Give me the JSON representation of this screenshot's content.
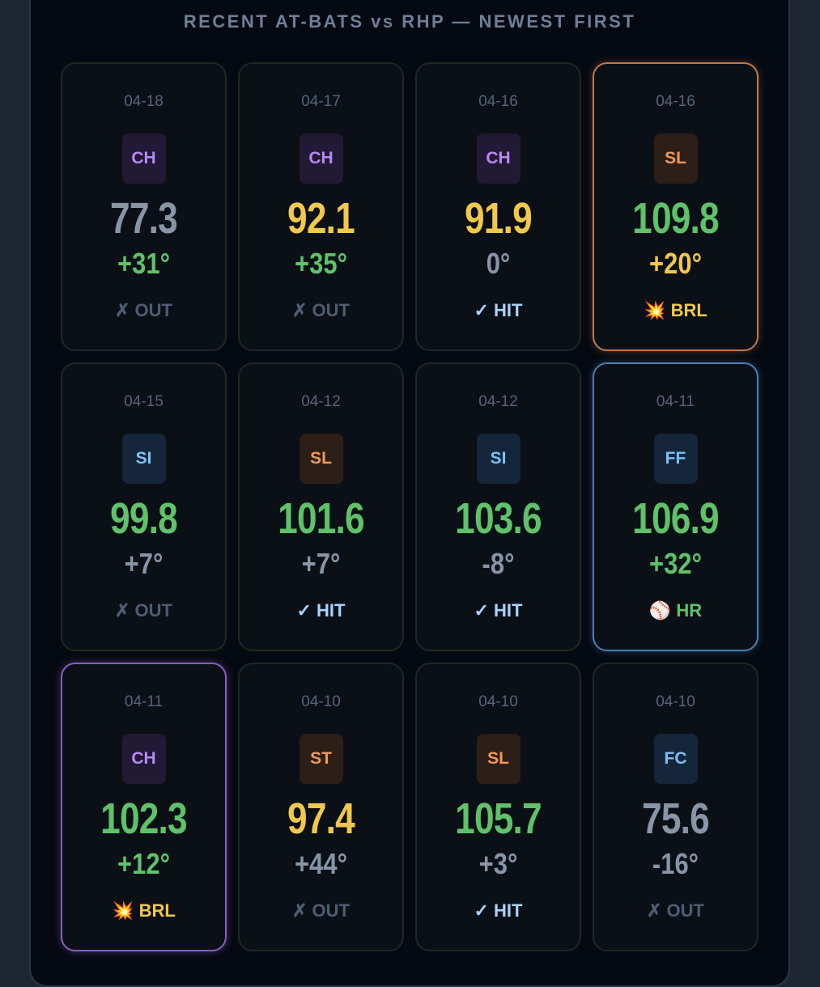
{
  "title": "RECENT AT-BATS vs RHP — NEWEST FIRST",
  "cards": [
    {
      "date": "04-18",
      "pitch": "CH",
      "velo": "77.3",
      "angle": "+31°",
      "result_icon": "✗",
      "result": "OUT"
    },
    {
      "date": "04-17",
      "pitch": "CH",
      "velo": "92.1",
      "angle": "+35°",
      "result_icon": "✗",
      "result": "OUT"
    },
    {
      "date": "04-16",
      "pitch": "CH",
      "velo": "91.9",
      "angle": "0°",
      "result_icon": "✓",
      "result": "HIT"
    },
    {
      "date": "04-16",
      "pitch": "SL",
      "velo": "109.8",
      "angle": "+20°",
      "result_icon": "💥",
      "result": "BRL"
    },
    {
      "date": "04-15",
      "pitch": "SI",
      "velo": "99.8",
      "angle": "+7°",
      "result_icon": "✗",
      "result": "OUT"
    },
    {
      "date": "04-12",
      "pitch": "SL",
      "velo": "101.6",
      "angle": "+7°",
      "result_icon": "✓",
      "result": "HIT"
    },
    {
      "date": "04-12",
      "pitch": "SI",
      "velo": "103.6",
      "angle": "-8°",
      "result_icon": "✓",
      "result": "HIT"
    },
    {
      "date": "04-11",
      "pitch": "FF",
      "velo": "106.9",
      "angle": "+32°",
      "result_icon": "⚾",
      "result": "HR"
    },
    {
      "date": "04-11",
      "pitch": "CH",
      "velo": "102.3",
      "angle": "+12°",
      "result_icon": "💥",
      "result": "BRL"
    },
    {
      "date": "04-10",
      "pitch": "ST",
      "velo": "97.4",
      "angle": "+44°",
      "result_icon": "✗",
      "result": "OUT"
    },
    {
      "date": "04-10",
      "pitch": "SL",
      "velo": "105.7",
      "angle": "+3°",
      "result_icon": "✓",
      "result": "HIT"
    },
    {
      "date": "04-10",
      "pitch": "FC",
      "velo": "75.6",
      "angle": "-16°",
      "result_icon": "✗",
      "result": "OUT"
    }
  ],
  "colors": {
    "green": "#5fc269",
    "yellow": "#f1c84b",
    "gray": "#8895a7",
    "highlight_orange": "#c07a4a",
    "highlight_blue": "#4a7fb3",
    "highlight_purple": "#8a5bc0"
  }
}
